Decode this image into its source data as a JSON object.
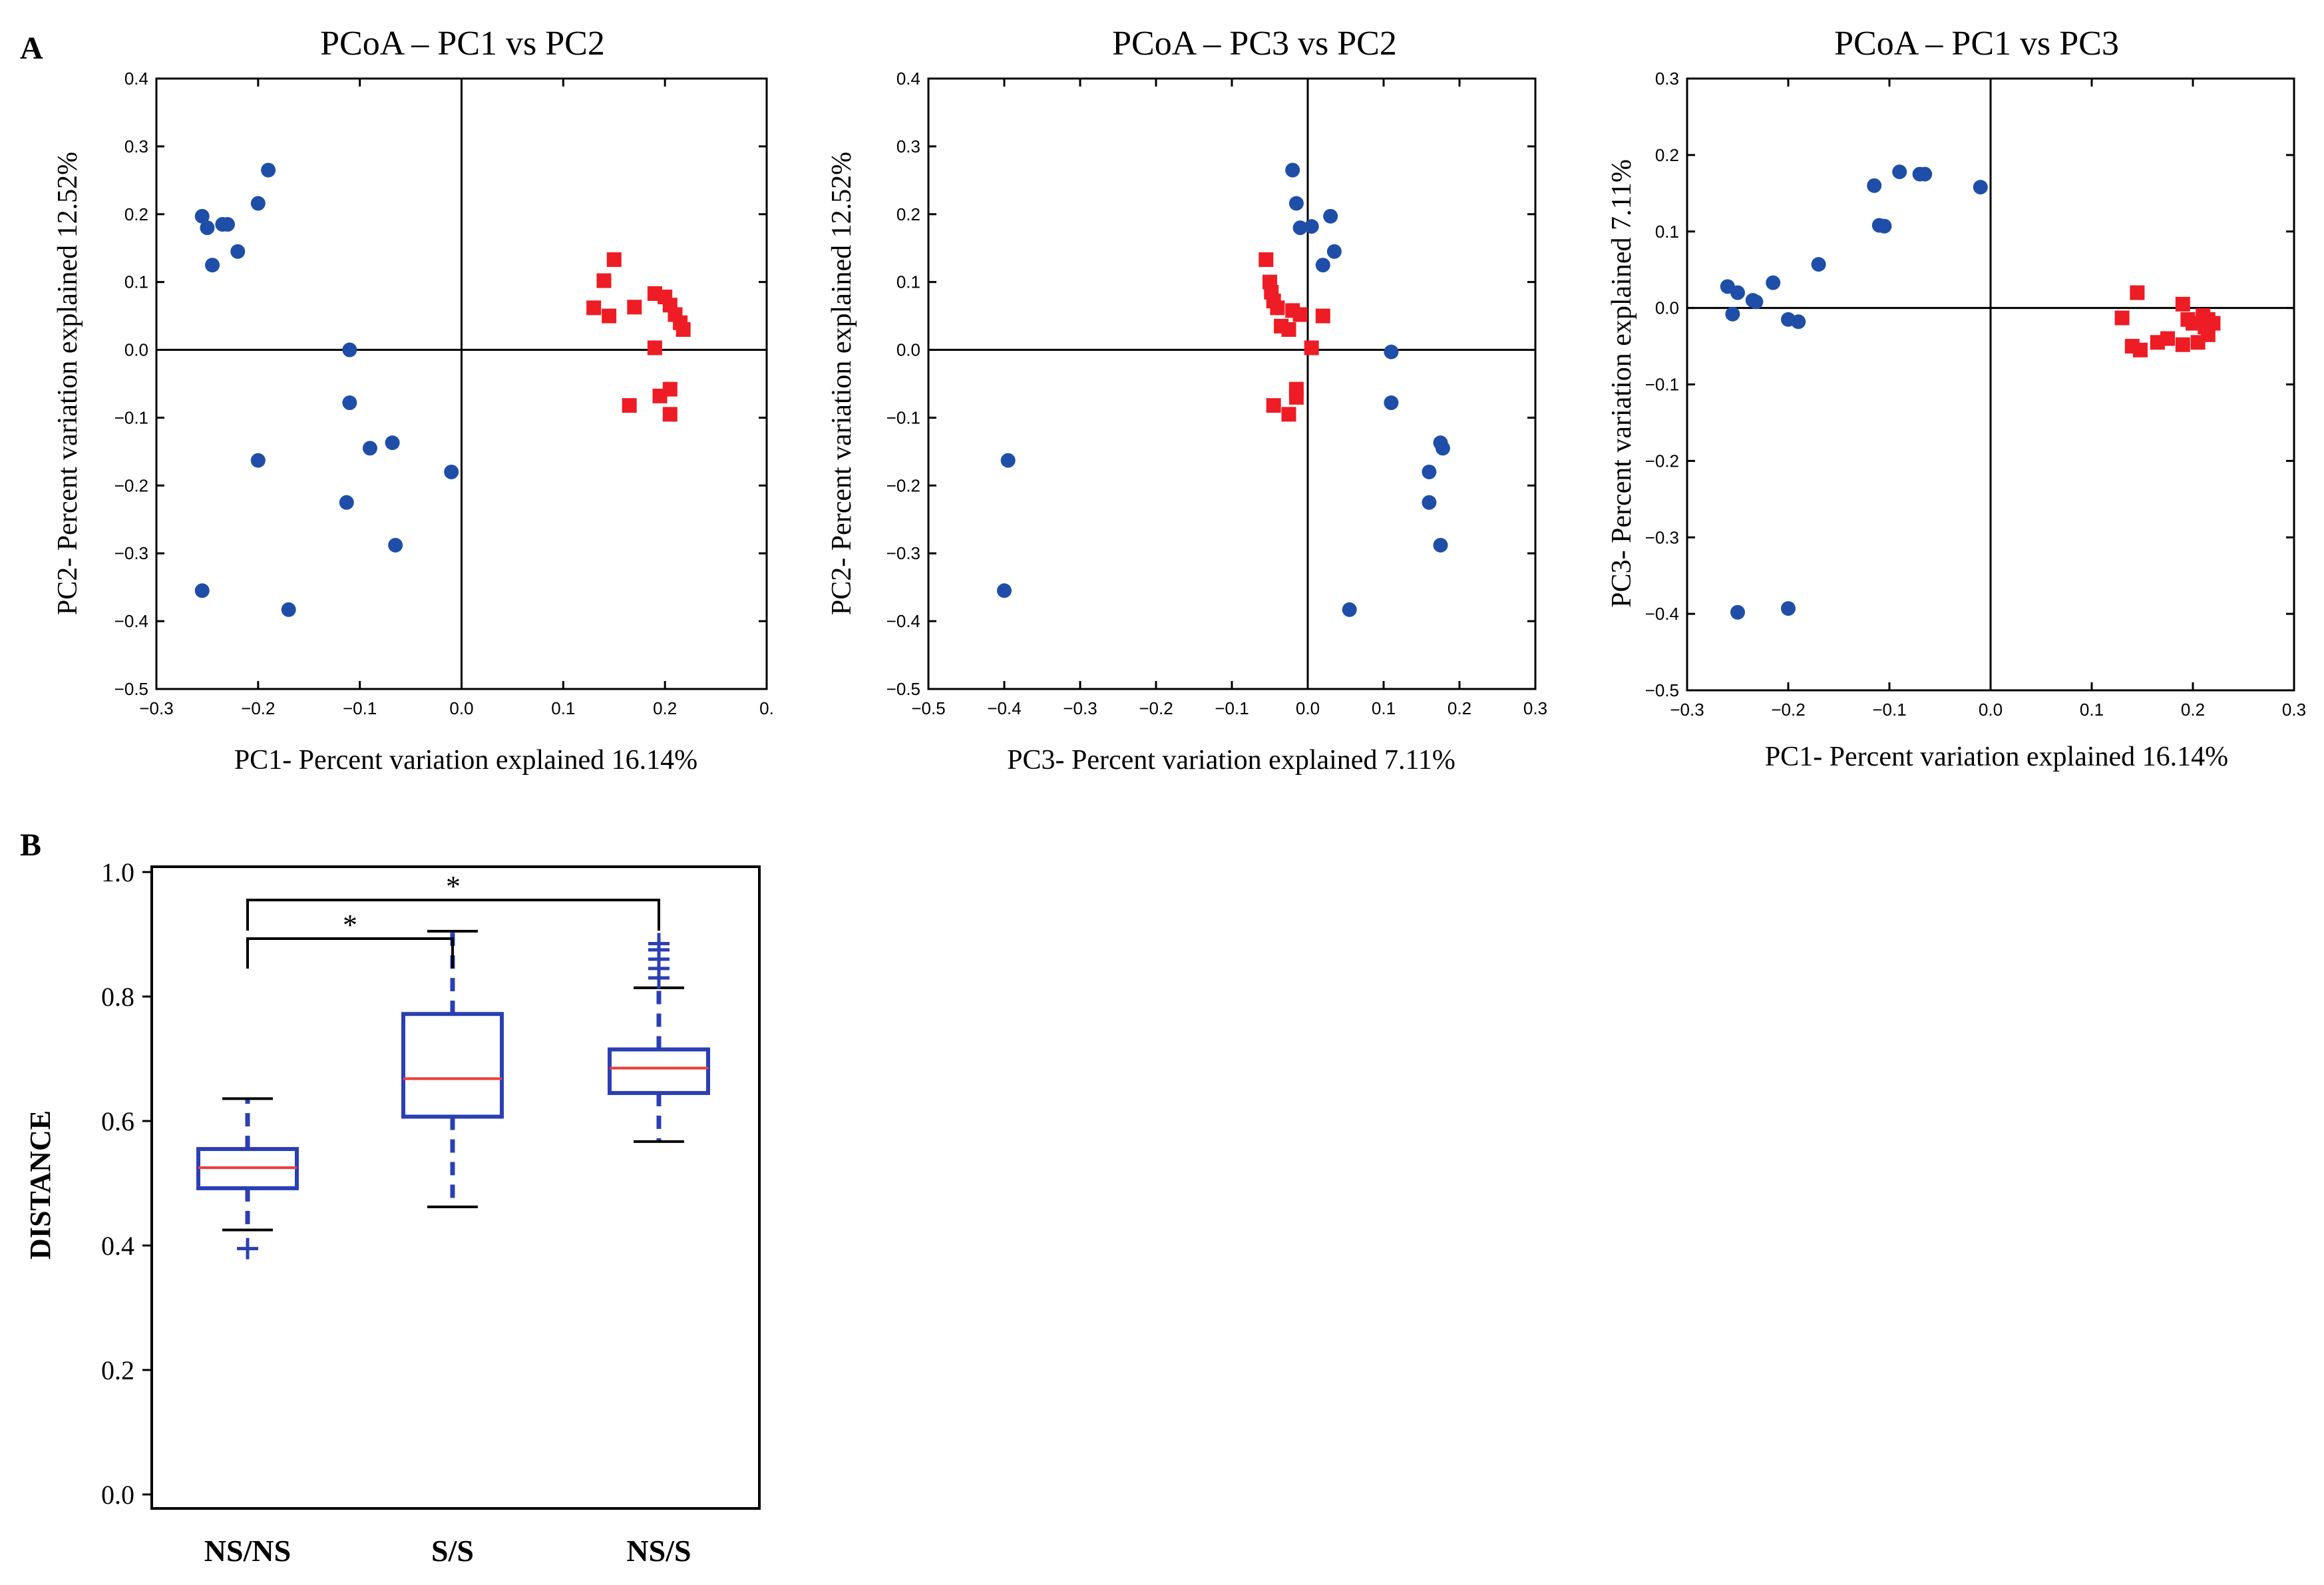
{
  "panel_labels": {
    "a": "A",
    "b": "B"
  },
  "colors": {
    "blue": "#1f4ea8",
    "red": "#ee1c24",
    "box": "#2b3fb3",
    "median": "#ee3b3b",
    "axis": "#000000"
  },
  "chart_data": [
    {
      "type": "scatter",
      "title": "PCoA – PC1 vs PC2",
      "xlabel": "PC1- Percent variation explained 16.14%",
      "ylabel": "PC2- Percent variation explained 12.52%",
      "xlim": [
        -0.3,
        0.3
      ],
      "ylim": [
        -0.5,
        0.4
      ],
      "xticks": [
        "−0.3",
        "−0.2",
        "−0.1",
        "0.0",
        "0.1",
        "0.2",
        "0."
      ],
      "yticks": [
        "−0.5",
        "−0.4",
        "−0.3",
        "−0.2",
        "−0.1",
        "0.0",
        "0.1",
        "0.2",
        "0.3",
        "0.4"
      ],
      "grid": false,
      "series": [
        {
          "name": "group-blue",
          "marker": "circle",
          "color": "#1f4ea8",
          "points": [
            [
              -0.255,
              0.197
            ],
            [
              -0.25,
              0.18
            ],
            [
              -0.245,
              0.125
            ],
            [
              -0.235,
              0.185
            ],
            [
              -0.23,
              0.185
            ],
            [
              -0.22,
              0.145
            ],
            [
              -0.2,
              0.216
            ],
            [
              -0.19,
              0.265
            ],
            [
              -0.2,
              -0.163
            ],
            [
              -0.255,
              -0.355
            ],
            [
              -0.17,
              -0.383
            ],
            [
              -0.11,
              0.0
            ],
            [
              -0.11,
              -0.078
            ],
            [
              -0.09,
              -0.145
            ],
            [
              -0.068,
              -0.137
            ],
            [
              -0.113,
              -0.225
            ],
            [
              -0.065,
              -0.288
            ],
            [
              -0.01,
              -0.18
            ]
          ]
        },
        {
          "name": "group-red",
          "marker": "square",
          "color": "#ee1c24",
          "points": [
            [
              0.13,
              0.062
            ],
            [
              0.14,
              0.102
            ],
            [
              0.15,
              0.133
            ],
            [
              0.145,
              0.05
            ],
            [
              0.17,
              0.063
            ],
            [
              0.19,
              0.083
            ],
            [
              0.2,
              0.078
            ],
            [
              0.205,
              0.066
            ],
            [
              0.21,
              0.052
            ],
            [
              0.215,
              0.04
            ],
            [
              0.218,
              0.03
            ],
            [
              0.19,
              0.003
            ],
            [
              0.165,
              -0.082
            ],
            [
              0.195,
              -0.068
            ],
            [
              0.205,
              -0.058
            ],
            [
              0.205,
              -0.095
            ]
          ]
        }
      ]
    },
    {
      "type": "scatter",
      "title": "PCoA – PC3 vs PC2",
      "xlabel": "PC3- Percent variation explained 7.11%",
      "ylabel": "PC2- Percent variation explained 12.52%",
      "xlim": [
        -0.5,
        0.3
      ],
      "ylim": [
        -0.5,
        0.4
      ],
      "xticks": [
        "−0.5",
        "−0.4",
        "−0.3",
        "−0.2",
        "−0.1",
        "0.0",
        "0.1",
        "0.2",
        "0.3"
      ],
      "yticks": [
        "−0.5",
        "−0.4",
        "−0.3",
        "−0.2",
        "−0.1",
        "0.0",
        "0.1",
        "0.2",
        "0.3",
        "0.4"
      ],
      "grid": false,
      "series": [
        {
          "name": "group-blue",
          "marker": "circle",
          "color": "#1f4ea8",
          "points": [
            [
              -0.02,
              0.265
            ],
            [
              -0.015,
              0.216
            ],
            [
              -0.01,
              0.18
            ],
            [
              0.005,
              0.182
            ],
            [
              0.03,
              0.197
            ],
            [
              0.035,
              0.145
            ],
            [
              0.02,
              0.125
            ],
            [
              0.11,
              -0.003
            ],
            [
              0.11,
              -0.078
            ],
            [
              0.175,
              -0.137
            ],
            [
              0.178,
              -0.145
            ],
            [
              0.16,
              -0.18
            ],
            [
              0.16,
              -0.225
            ],
            [
              0.175,
              -0.288
            ],
            [
              0.055,
              -0.383
            ],
            [
              -0.395,
              -0.163
            ],
            [
              -0.4,
              -0.355
            ]
          ]
        },
        {
          "name": "group-red",
          "marker": "square",
          "color": "#ee1c24",
          "points": [
            [
              -0.055,
              0.133
            ],
            [
              -0.05,
              0.1
            ],
            [
              -0.048,
              0.085
            ],
            [
              -0.045,
              0.072
            ],
            [
              -0.04,
              0.062
            ],
            [
              -0.035,
              0.035
            ],
            [
              -0.025,
              0.03
            ],
            [
              -0.02,
              0.058
            ],
            [
              -0.01,
              0.052
            ],
            [
              0.02,
              0.05
            ],
            [
              0.005,
              0.003
            ],
            [
              -0.045,
              -0.082
            ],
            [
              -0.025,
              -0.095
            ],
            [
              -0.015,
              -0.07
            ],
            [
              -0.015,
              -0.058
            ]
          ]
        }
      ]
    },
    {
      "type": "scatter",
      "title": "PCoA – PC1 vs PC3",
      "xlabel": "PC1- Percent variation explained 16.14%",
      "ylabel": "PC3- Percent variation explained 7.11%",
      "xlim": [
        -0.3,
        0.3
      ],
      "ylim": [
        -0.5,
        0.3
      ],
      "xticks": [
        "−0.3",
        "−0.2",
        "−0.1",
        "0.0",
        "0.1",
        "0.2",
        "0.3"
      ],
      "yticks": [
        "−0.5",
        "−0.4",
        "−0.3",
        "−0.2",
        "−0.1",
        "0.0",
        "0.1",
        "0.2",
        "0.3"
      ],
      "grid": false,
      "series": [
        {
          "name": "group-blue",
          "marker": "circle",
          "color": "#1f4ea8",
          "points": [
            [
              -0.26,
              0.028
            ],
            [
              -0.25,
              0.02
            ],
            [
              -0.235,
              0.01
            ],
            [
              -0.232,
              0.008
            ],
            [
              -0.255,
              -0.008
            ],
            [
              -0.215,
              0.033
            ],
            [
              -0.2,
              -0.015
            ],
            [
              -0.19,
              -0.018
            ],
            [
              -0.17,
              0.057
            ],
            [
              -0.115,
              0.16
            ],
            [
              -0.11,
              0.108
            ],
            [
              -0.105,
              0.107
            ],
            [
              -0.09,
              0.178
            ],
            [
              -0.07,
              0.175
            ],
            [
              -0.065,
              0.175
            ],
            [
              -0.01,
              0.158
            ],
            [
              -0.25,
              -0.398
            ],
            [
              -0.2,
              -0.393
            ]
          ]
        },
        {
          "name": "group-red",
          "marker": "square",
          "color": "#ee1c24",
          "points": [
            [
              0.13,
              -0.013
            ],
            [
              0.145,
              0.02
            ],
            [
              0.14,
              -0.05
            ],
            [
              0.148,
              -0.055
            ],
            [
              0.165,
              -0.045
            ],
            [
              0.175,
              -0.04
            ],
            [
              0.19,
              0.005
            ],
            [
              0.19,
              -0.048
            ],
            [
              0.195,
              -0.015
            ],
            [
              0.2,
              -0.02
            ],
            [
              0.205,
              -0.045
            ],
            [
              0.21,
              -0.01
            ],
            [
              0.212,
              -0.025
            ],
            [
              0.215,
              -0.035
            ],
            [
              0.22,
              -0.02
            ],
            [
              0.215,
              -0.015
            ]
          ]
        }
      ]
    },
    {
      "type": "box",
      "title": "",
      "xlabel": "",
      "ylabel": "DISTANCE",
      "ylim": [
        0.0,
        1.0
      ],
      "yticks": [
        "0.0",
        "0.2",
        "0.4",
        "0.6",
        "0.8",
        "1.0"
      ],
      "categories": [
        "NS/NS",
        "S/S",
        "NS/S"
      ],
      "boxes": [
        {
          "label": "NS/NS",
          "whisker_low": 0.425,
          "q1": 0.492,
          "median": 0.525,
          "q3": 0.555,
          "whisker_high": 0.636,
          "outliers": [
            0.395
          ]
        },
        {
          "label": "S/S",
          "whisker_low": 0.462,
          "q1": 0.607,
          "median": 0.668,
          "q3": 0.772,
          "whisker_high": 0.905,
          "outliers": []
        },
        {
          "label": "NS/S",
          "whisker_low": 0.567,
          "q1": 0.645,
          "median": 0.685,
          "q3": 0.715,
          "whisker_high": 0.814,
          "outliers": [
            0.83,
            0.845,
            0.86,
            0.875,
            0.885
          ]
        }
      ],
      "significance": [
        {
          "from": "NS/NS",
          "to": "S/S",
          "label": "*"
        },
        {
          "from": "NS/NS",
          "to": "NS/S",
          "label": "*"
        }
      ]
    }
  ]
}
